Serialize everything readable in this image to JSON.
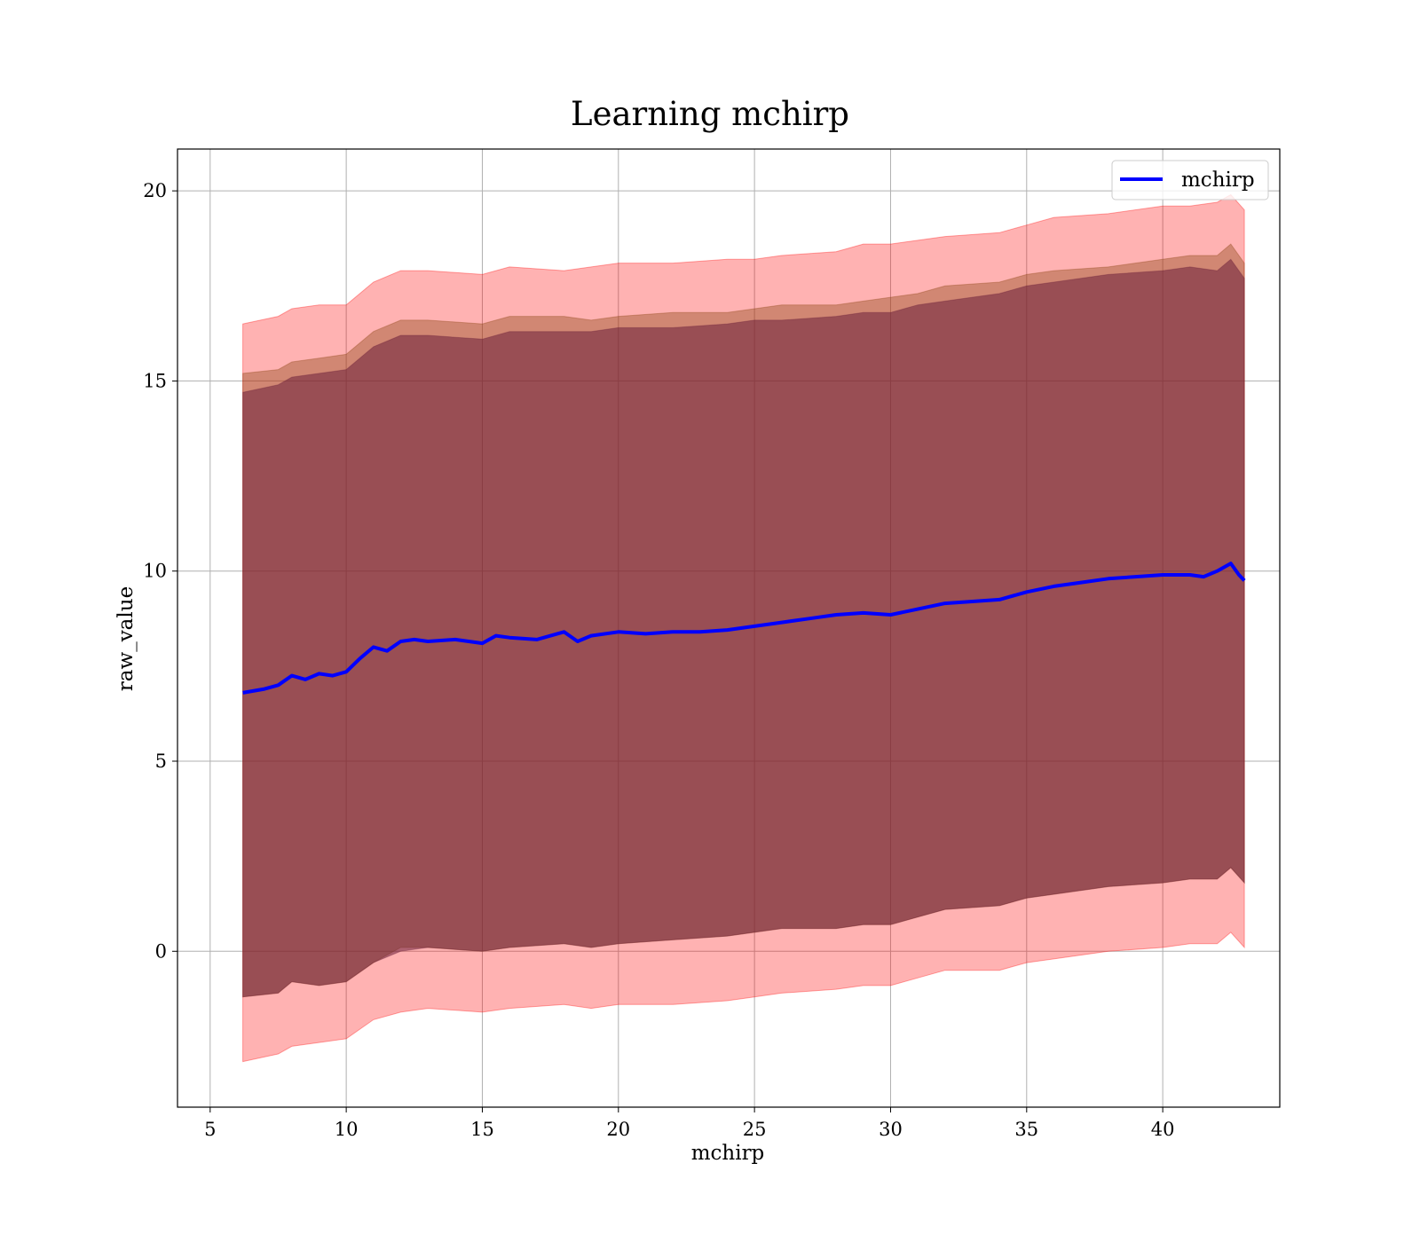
{
  "chart_data": {
    "type": "line",
    "title": "Learning mchirp",
    "xlabel": "mchirp",
    "ylabel": "raw_value",
    "xlim": [
      3.8,
      44.3
    ],
    "ylim": [
      -4.1,
      21.1
    ],
    "xticks": [
      5,
      10,
      15,
      20,
      25,
      30,
      35,
      40
    ],
    "yticks": [
      0,
      5,
      10,
      15,
      20
    ],
    "grid": true,
    "legend": {
      "placement": "top-right",
      "entries": [
        "mchirp"
      ]
    },
    "series": [
      {
        "name": "mchirp",
        "kind": "line",
        "color": "#0000ff",
        "x": [
          6.2,
          7.0,
          7.5,
          8.0,
          8.5,
          9.0,
          9.5,
          10.0,
          10.5,
          11.0,
          11.5,
          12.0,
          12.5,
          13.0,
          14.0,
          15.0,
          15.5,
          16.0,
          17.0,
          18.0,
          18.5,
          19.0,
          20.0,
          21.0,
          22.0,
          23.0,
          24.0,
          25.0,
          26.0,
          27.0,
          28.0,
          29.0,
          30.0,
          31.0,
          32.0,
          33.0,
          34.0,
          35.0,
          36.0,
          37.0,
          38.0,
          39.0,
          40.0,
          41.0,
          41.5,
          42.0,
          42.5,
          42.8,
          43.0
        ],
        "y": [
          6.8,
          6.9,
          7.0,
          7.25,
          7.15,
          7.3,
          7.25,
          7.35,
          7.7,
          8.0,
          7.9,
          8.15,
          8.2,
          8.15,
          8.2,
          8.1,
          8.3,
          8.25,
          8.2,
          8.4,
          8.15,
          8.3,
          8.4,
          8.35,
          8.4,
          8.4,
          8.45,
          8.55,
          8.65,
          8.75,
          8.85,
          8.9,
          8.85,
          9.0,
          9.15,
          9.2,
          9.25,
          9.45,
          9.6,
          9.7,
          9.8,
          9.85,
          9.9,
          9.9,
          9.85,
          10.0,
          10.2,
          9.9,
          9.75
        ]
      }
    ],
    "bands": [
      {
        "kind": "band",
        "color": "#ff0000",
        "opacity": 0.3,
        "x": [
          6.2,
          7.5,
          8.0,
          9.0,
          10.0,
          11.0,
          12.0,
          13.0,
          15.0,
          16.0,
          18.0,
          19.0,
          20.0,
          22.0,
          24.0,
          25.0,
          26.0,
          28.0,
          29.0,
          30.0,
          31.0,
          32.0,
          34.0,
          35.0,
          36.0,
          38.0,
          40.0,
          41.0,
          42.0,
          42.5,
          43.0
        ],
        "upper": [
          16.5,
          16.7,
          16.9,
          17.0,
          17.0,
          17.6,
          17.9,
          17.9,
          17.8,
          18.0,
          17.9,
          18.0,
          18.1,
          18.1,
          18.2,
          18.2,
          18.3,
          18.4,
          18.6,
          18.6,
          18.7,
          18.8,
          18.9,
          19.1,
          19.3,
          19.4,
          19.6,
          19.6,
          19.7,
          19.9,
          19.5
        ],
        "lower": [
          -2.9,
          -2.7,
          -2.5,
          -2.4,
          -2.3,
          -1.8,
          -1.6,
          -1.5,
          -1.6,
          -1.5,
          -1.4,
          -1.5,
          -1.4,
          -1.4,
          -1.3,
          -1.2,
          -1.1,
          -1.0,
          -0.9,
          -0.9,
          -0.7,
          -0.5,
          -0.5,
          -0.3,
          -0.2,
          0.0,
          0.1,
          0.2,
          0.2,
          0.5,
          0.1
        ]
      },
      {
        "kind": "band",
        "color": "#8b4513",
        "opacity": 0.4,
        "x": [
          6.2,
          7.5,
          8.0,
          9.0,
          10.0,
          11.0,
          12.0,
          13.0,
          15.0,
          16.0,
          18.0,
          19.0,
          20.0,
          22.0,
          24.0,
          25.0,
          26.0,
          28.0,
          29.0,
          30.0,
          31.0,
          32.0,
          34.0,
          35.0,
          36.0,
          38.0,
          40.0,
          41.0,
          42.0,
          42.5,
          43.0
        ],
        "upper": [
          15.2,
          15.3,
          15.5,
          15.6,
          15.7,
          16.3,
          16.6,
          16.6,
          16.5,
          16.7,
          16.7,
          16.6,
          16.7,
          16.8,
          16.8,
          16.9,
          17.0,
          17.0,
          17.1,
          17.2,
          17.3,
          17.5,
          17.6,
          17.8,
          17.9,
          18.0,
          18.2,
          18.3,
          18.3,
          18.6,
          18.1
        ],
        "lower": [
          -1.2,
          -1.1,
          -0.8,
          -0.9,
          -0.8,
          -0.3,
          0.1,
          0.1,
          0.0,
          0.1,
          0.2,
          0.1,
          0.2,
          0.3,
          0.4,
          0.5,
          0.6,
          0.6,
          0.7,
          0.7,
          0.9,
          1.1,
          1.2,
          1.4,
          1.5,
          1.7,
          1.8,
          1.9,
          1.9,
          2.2,
          1.8
        ]
      },
      {
        "kind": "band",
        "color": "#6b1f3a",
        "opacity": 0.55,
        "x": [
          6.2,
          7.5,
          8.0,
          9.0,
          10.0,
          11.0,
          12.0,
          13.0,
          15.0,
          16.0,
          18.0,
          19.0,
          20.0,
          22.0,
          24.0,
          25.0,
          26.0,
          28.0,
          29.0,
          30.0,
          31.0,
          32.0,
          34.0,
          35.0,
          36.0,
          38.0,
          40.0,
          41.0,
          42.0,
          42.5,
          43.0
        ],
        "upper": [
          14.7,
          14.9,
          15.1,
          15.2,
          15.3,
          15.9,
          16.2,
          16.2,
          16.1,
          16.3,
          16.3,
          16.3,
          16.4,
          16.4,
          16.5,
          16.6,
          16.6,
          16.7,
          16.8,
          16.8,
          17.0,
          17.1,
          17.3,
          17.5,
          17.6,
          17.8,
          17.9,
          18.0,
          17.9,
          18.2,
          17.7
        ],
        "lower": [
          -1.2,
          -1.1,
          -0.8,
          -0.9,
          -0.8,
          -0.3,
          0.0,
          0.1,
          0.0,
          0.1,
          0.2,
          0.1,
          0.2,
          0.3,
          0.4,
          0.5,
          0.6,
          0.6,
          0.7,
          0.7,
          0.9,
          1.1,
          1.2,
          1.4,
          1.5,
          1.7,
          1.8,
          1.9,
          1.9,
          2.2,
          1.8
        ]
      }
    ]
  }
}
